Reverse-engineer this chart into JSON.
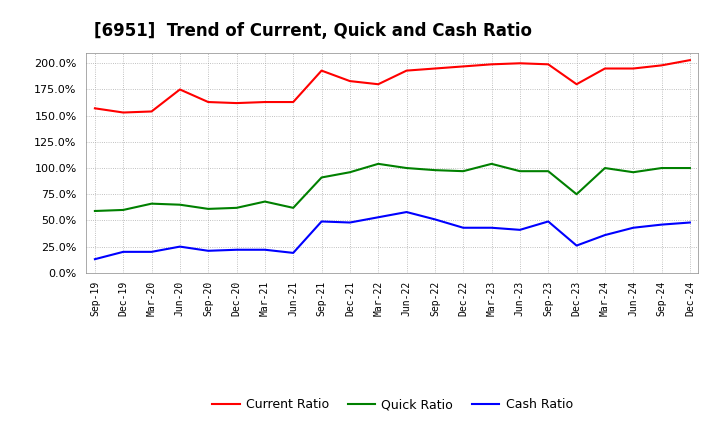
{
  "title": "[6951]  Trend of Current, Quick and Cash Ratio",
  "x_labels": [
    "Sep-19",
    "Dec-19",
    "Mar-20",
    "Jun-20",
    "Sep-20",
    "Dec-20",
    "Mar-21",
    "Jun-21",
    "Sep-21",
    "Dec-21",
    "Mar-22",
    "Jun-22",
    "Sep-22",
    "Dec-22",
    "Mar-23",
    "Jun-23",
    "Sep-23",
    "Dec-23",
    "Mar-24",
    "Jun-24",
    "Sep-24",
    "Dec-24"
  ],
  "current_ratio": [
    157,
    153,
    154,
    175,
    163,
    162,
    163,
    163,
    193,
    183,
    180,
    193,
    195,
    197,
    199,
    200,
    199,
    180,
    195,
    195,
    198,
    203
  ],
  "quick_ratio": [
    59,
    60,
    66,
    65,
    61,
    62,
    68,
    62,
    91,
    96,
    104,
    100,
    98,
    97,
    104,
    97,
    97,
    75,
    100,
    96,
    100,
    100
  ],
  "cash_ratio": [
    13,
    20,
    20,
    25,
    21,
    22,
    22,
    19,
    49,
    48,
    53,
    58,
    51,
    43,
    43,
    41,
    49,
    26,
    36,
    43,
    46,
    48
  ],
  "current_color": "#FF0000",
  "quick_color": "#008000",
  "cash_color": "#0000FF",
  "ylim": [
    0,
    210
  ],
  "yticks": [
    0,
    25,
    50,
    75,
    100,
    125,
    150,
    175,
    200
  ],
  "background_color": "#FFFFFF",
  "plot_bg_color": "#FFFFFF",
  "grid_color": "#999999",
  "title_fontsize": 12,
  "legend_labels": [
    "Current Ratio",
    "Quick Ratio",
    "Cash Ratio"
  ]
}
